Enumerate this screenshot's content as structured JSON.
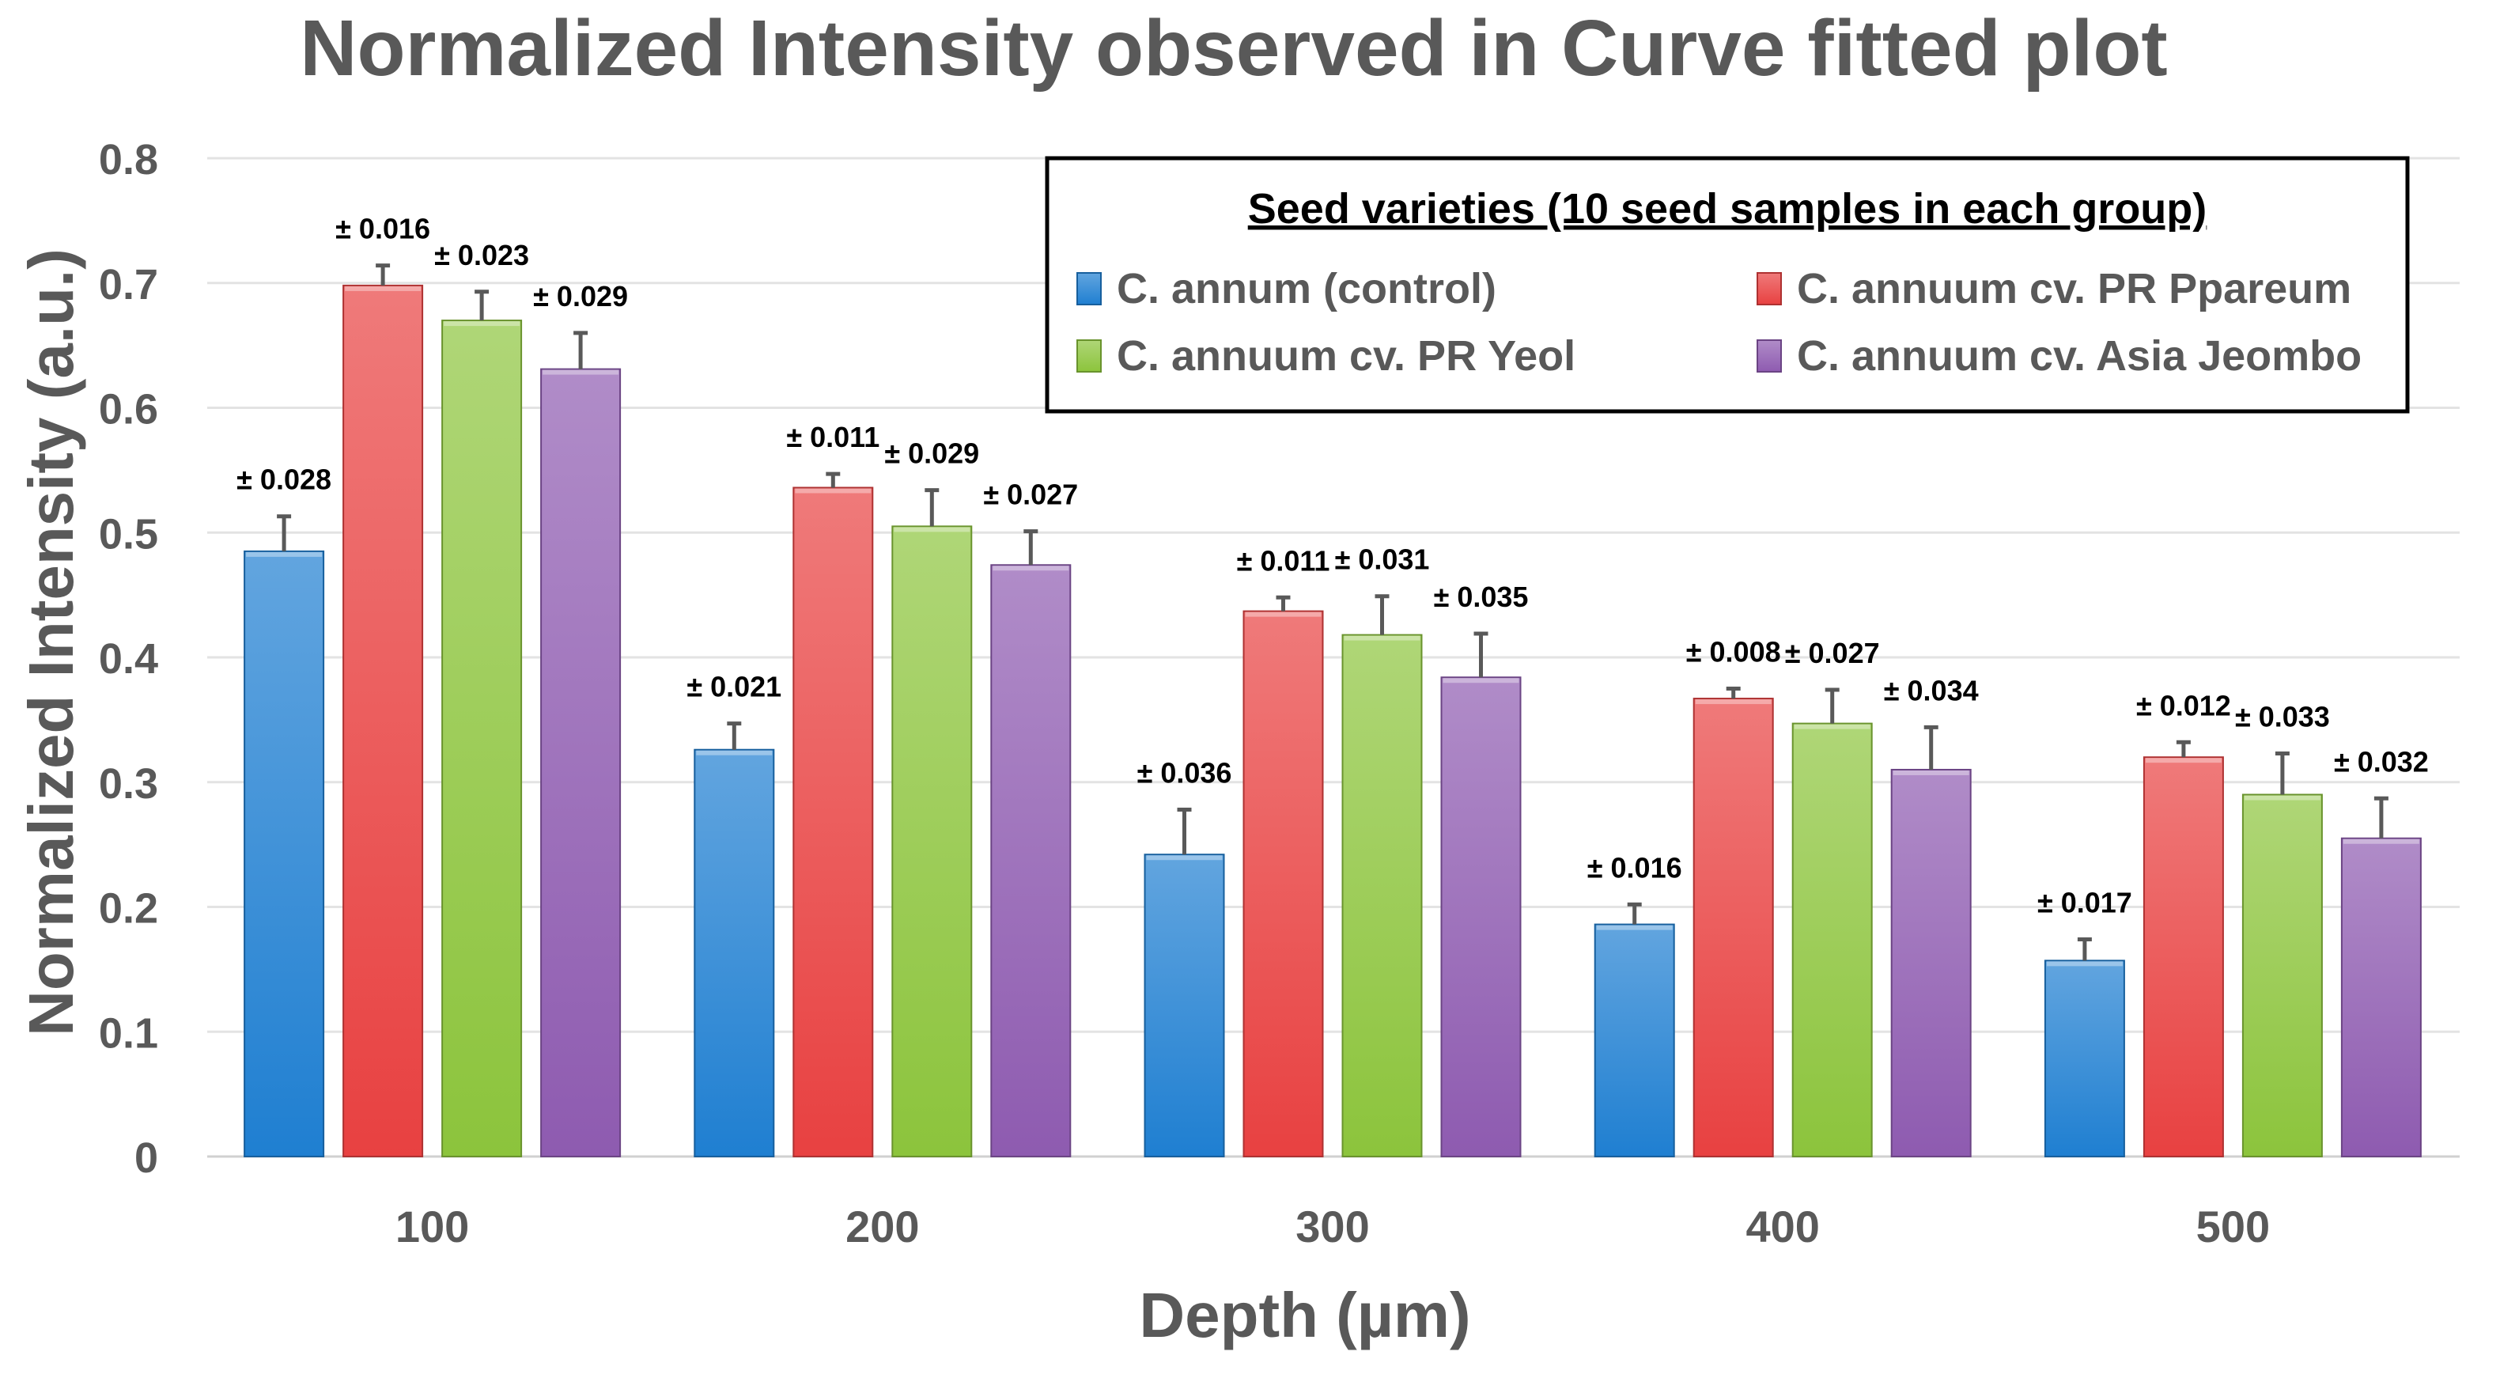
{
  "chart_data": {
    "type": "bar",
    "title": "Normalized Intensity observed in Curve fitted plot",
    "xlabel": "Depth (µm)",
    "ylabel": "Normalized Intensity (a.u.)",
    "ylim": [
      0,
      0.8
    ],
    "y_ticks": [
      "0",
      "0.1",
      "0.2",
      "0.3",
      "0.4",
      "0.5",
      "0.6",
      "0.7",
      "0.8"
    ],
    "grid": true,
    "categories": [
      "100",
      "200",
      "300",
      "400",
      "500"
    ],
    "legend": {
      "title": "Seed varieties (10 seed samples in each group)",
      "position": "top-right"
    },
    "series": [
      {
        "name": "C. annum (control)",
        "color": "#1f7fd1",
        "values": [
          0.485,
          0.326,
          0.242,
          0.186,
          0.157
        ],
        "errors": [
          0.028,
          0.021,
          0.036,
          0.016,
          0.017
        ],
        "error_labels": [
          "± 0.028",
          "± 0.021",
          "± 0.036",
          "± 0.016",
          "± 0.017"
        ]
      },
      {
        "name": "C. annuum cv. PR Ppareum",
        "color": "#e84141",
        "values": [
          0.698,
          0.536,
          0.437,
          0.367,
          0.32
        ],
        "errors": [
          0.016,
          0.011,
          0.011,
          0.008,
          0.012
        ],
        "error_labels": [
          "± 0.016",
          "± 0.011",
          "± 0.011",
          "± 0.008",
          "± 0.012"
        ]
      },
      {
        "name": "C. annuum cv. PR Yeol",
        "color": "#8cc43c",
        "values": [
          0.67,
          0.505,
          0.418,
          0.347,
          0.29
        ],
        "errors": [
          0.023,
          0.029,
          0.031,
          0.027,
          0.033
        ],
        "error_labels": [
          "± 0.023",
          "± 0.029",
          "± 0.031",
          "± 0.027",
          "± 0.033"
        ]
      },
      {
        "name": "C. annuum cv. Asia Jeombo",
        "color": "#8e5bb0",
        "values": [
          0.631,
          0.474,
          0.384,
          0.31,
          0.255
        ],
        "errors": [
          0.029,
          0.027,
          0.035,
          0.034,
          0.032
        ],
        "error_labels": [
          "± 0.029",
          "± 0.027",
          "± 0.035",
          "± 0.034",
          "± 0.032"
        ]
      }
    ]
  }
}
